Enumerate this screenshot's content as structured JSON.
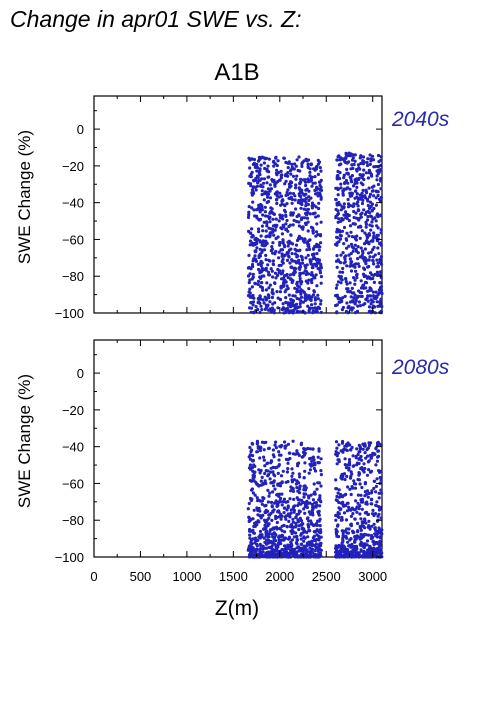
{
  "figure": {
    "title": "Change in apr01 SWE vs. Z:",
    "scenario": "A1B",
    "xlabel": "Z(m)"
  },
  "colors": {
    "points": "#2222bb",
    "period_label": "#2a2ab0",
    "axis": "#000000"
  },
  "chart_data": [
    {
      "type": "scatter",
      "period": "2040s",
      "ylabel": "SWE Change (%)",
      "xlim": [
        0,
        3100
      ],
      "ylim": [
        -100,
        18
      ],
      "xticks": [
        0,
        500,
        1000,
        1500,
        2000,
        2500,
        3000
      ],
      "yticks": [
        0,
        -20,
        -40,
        -60,
        -80,
        -100
      ],
      "x_tick_labels_shown": false,
      "grid": false,
      "marker_color": "#2222bb",
      "elevation_bands_m": [
        {
          "x_min": 1660,
          "x_max": 1850,
          "y_min": -100,
          "y_max": -15
        },
        {
          "x_min": 1850,
          "x_max": 2250,
          "y_min": -100,
          "y_max": -15
        },
        {
          "x_min": 2250,
          "x_max": 2450,
          "y_min": -100,
          "y_max": -16
        },
        {
          "x_min": 2600,
          "x_max": 2820,
          "y_min": -100,
          "y_max": -13
        },
        {
          "x_min": 2820,
          "x_max": 3100,
          "y_min": -100,
          "y_max": -14
        }
      ],
      "notes": "Dense point cloud of grid cells between ~1660 m and ~3100 m, SWE change ranging from about -13% to -100%."
    },
    {
      "type": "scatter",
      "period": "2080s",
      "ylabel": "SWE Change (%)",
      "xlim": [
        0,
        3100
      ],
      "ylim": [
        -100,
        18
      ],
      "xticks": [
        0,
        500,
        1000,
        1500,
        2000,
        2500,
        3000
      ],
      "yticks": [
        0,
        -20,
        -40,
        -60,
        -80,
        -100
      ],
      "x_tick_labels_shown": true,
      "grid": false,
      "marker_color": "#2222bb",
      "elevation_bands_m": [
        {
          "x_min": 1660,
          "x_max": 1850,
          "y_min": -100,
          "y_max": -37
        },
        {
          "x_min": 1850,
          "x_max": 2250,
          "y_min": -100,
          "y_max": -37
        },
        {
          "x_min": 2250,
          "x_max": 2450,
          "y_min": -100,
          "y_max": -41
        },
        {
          "x_min": 2600,
          "x_max": 2820,
          "y_min": -100,
          "y_max": -37
        },
        {
          "x_min": 2820,
          "x_max": 3100,
          "y_min": -100,
          "y_max": -37
        }
      ],
      "notes": "Point cloud concentrated near -100% with upper envelope around -37%."
    }
  ]
}
